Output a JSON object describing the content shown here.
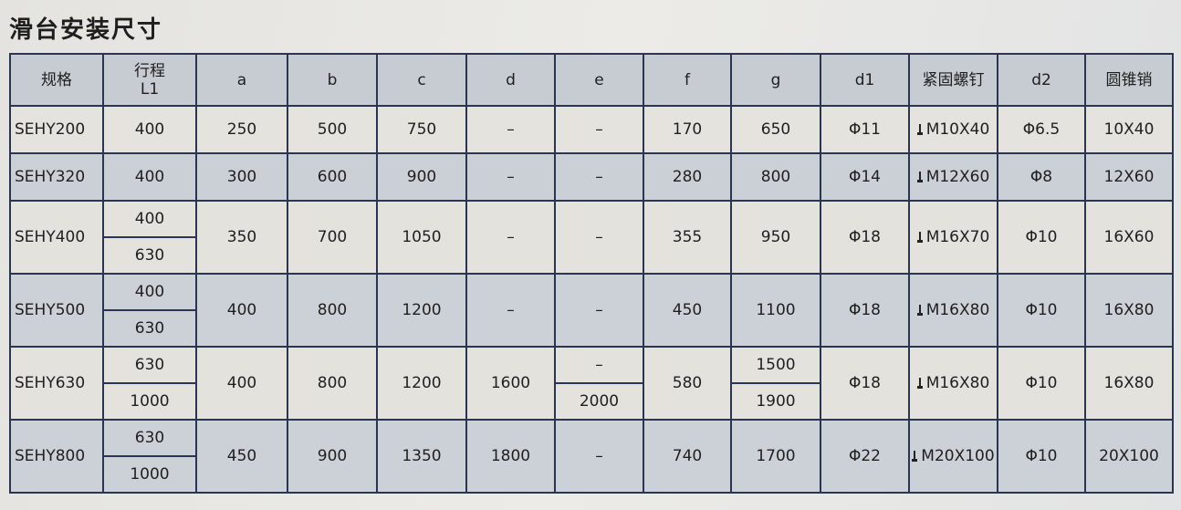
{
  "title": "滑台安装尺寸",
  "headers": {
    "model": "规格",
    "stroke_line1": "行程",
    "stroke_line2": "L1",
    "a": "a",
    "b": "b",
    "c": "c",
    "d": "d",
    "e": "e",
    "f": "f",
    "g": "g",
    "d1": "d1",
    "screw": "紧固螺钉",
    "d2": "d2",
    "pin": "圆锥销"
  },
  "rows": [
    {
      "model": "SEHY200",
      "l1": [
        "400"
      ],
      "a": "250",
      "b": "500",
      "c": "750",
      "d": "–",
      "e": [
        "–"
      ],
      "f": "170",
      "g": [
        "650"
      ],
      "d1": "Φ11",
      "screw": "M10X40",
      "d2": "Φ6.5",
      "pin": "10X40"
    },
    {
      "model": "SEHY320",
      "l1": [
        "400"
      ],
      "a": "300",
      "b": "600",
      "c": "900",
      "d": "–",
      "e": [
        "–"
      ],
      "f": "280",
      "g": [
        "800"
      ],
      "d1": "Φ14",
      "screw": "M12X60",
      "d2": "Φ8",
      "pin": "12X60"
    },
    {
      "model": "SEHY400",
      "l1": [
        "400",
        "630"
      ],
      "a": "350",
      "b": "700",
      "c": "1050",
      "d": "–",
      "e": [
        "–"
      ],
      "f": "355",
      "g": [
        "950"
      ],
      "d1": "Φ18",
      "screw": "M16X70",
      "d2": "Φ10",
      "pin": "16X60"
    },
    {
      "model": "SEHY500",
      "l1": [
        "400",
        "630"
      ],
      "a": "400",
      "b": "800",
      "c": "1200",
      "d": "–",
      "e": [
        "–"
      ],
      "f": "450",
      "g": [
        "1100"
      ],
      "d1": "Φ18",
      "screw": "M16X80",
      "d2": "Φ10",
      "pin": "16X80"
    },
    {
      "model": "SEHY630",
      "l1": [
        "630",
        "1000"
      ],
      "a": "400",
      "b": "800",
      "c": "1200",
      "d": "1600",
      "e": [
        "–",
        "2000"
      ],
      "f": "580",
      "g": [
        "1500",
        "1900"
      ],
      "d1": "Φ18",
      "screw": "M16X80",
      "d2": "Φ10",
      "pin": "16X80"
    },
    {
      "model": "SEHY800",
      "l1": [
        "630",
        "1000"
      ],
      "a": "450",
      "b": "900",
      "c": "1350",
      "d": "1800",
      "e": [
        "–"
      ],
      "f": "740",
      "g": [
        "1700"
      ],
      "d1": "Φ22",
      "screw": "M20X100",
      "d2": "Φ10",
      "pin": "20X100"
    }
  ],
  "icons": {
    "screw": "screw-icon"
  }
}
